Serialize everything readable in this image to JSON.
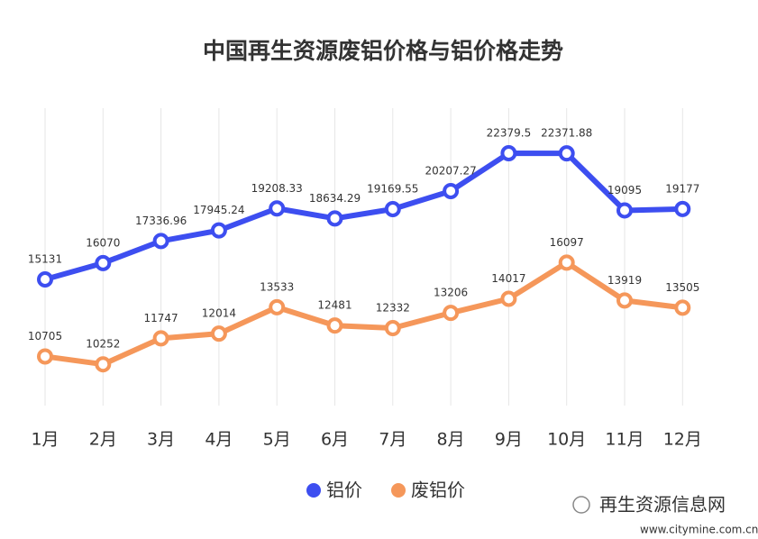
{
  "chart_data": {
    "type": "line",
    "title": "中国再生资源废铝价格与铝价格走势",
    "categories": [
      "1月",
      "2月",
      "3月",
      "4月",
      "5月",
      "6月",
      "7月",
      "8月",
      "9月",
      "10月",
      "11月",
      "12月"
    ],
    "series": [
      {
        "name": "铝价",
        "color": "#3d4ef0",
        "values": [
          15131,
          16070,
          17336.96,
          17945.24,
          19208.33,
          18634.29,
          19169.55,
          20207.27,
          22379.5,
          22371.88,
          19095,
          19177
        ]
      },
      {
        "name": "废铝价",
        "color": "#f5975a",
        "values": [
          10705,
          10252,
          11747,
          12014,
          13533,
          12481,
          12332,
          13206,
          14017,
          16097,
          13919,
          13505
        ]
      }
    ],
    "ylim": [
      7880,
      24970
    ],
    "grid": true,
    "legend": "bottom"
  },
  "watermark": {
    "name": "再生资源信息网",
    "url": "www.citymine.com.cn"
  }
}
